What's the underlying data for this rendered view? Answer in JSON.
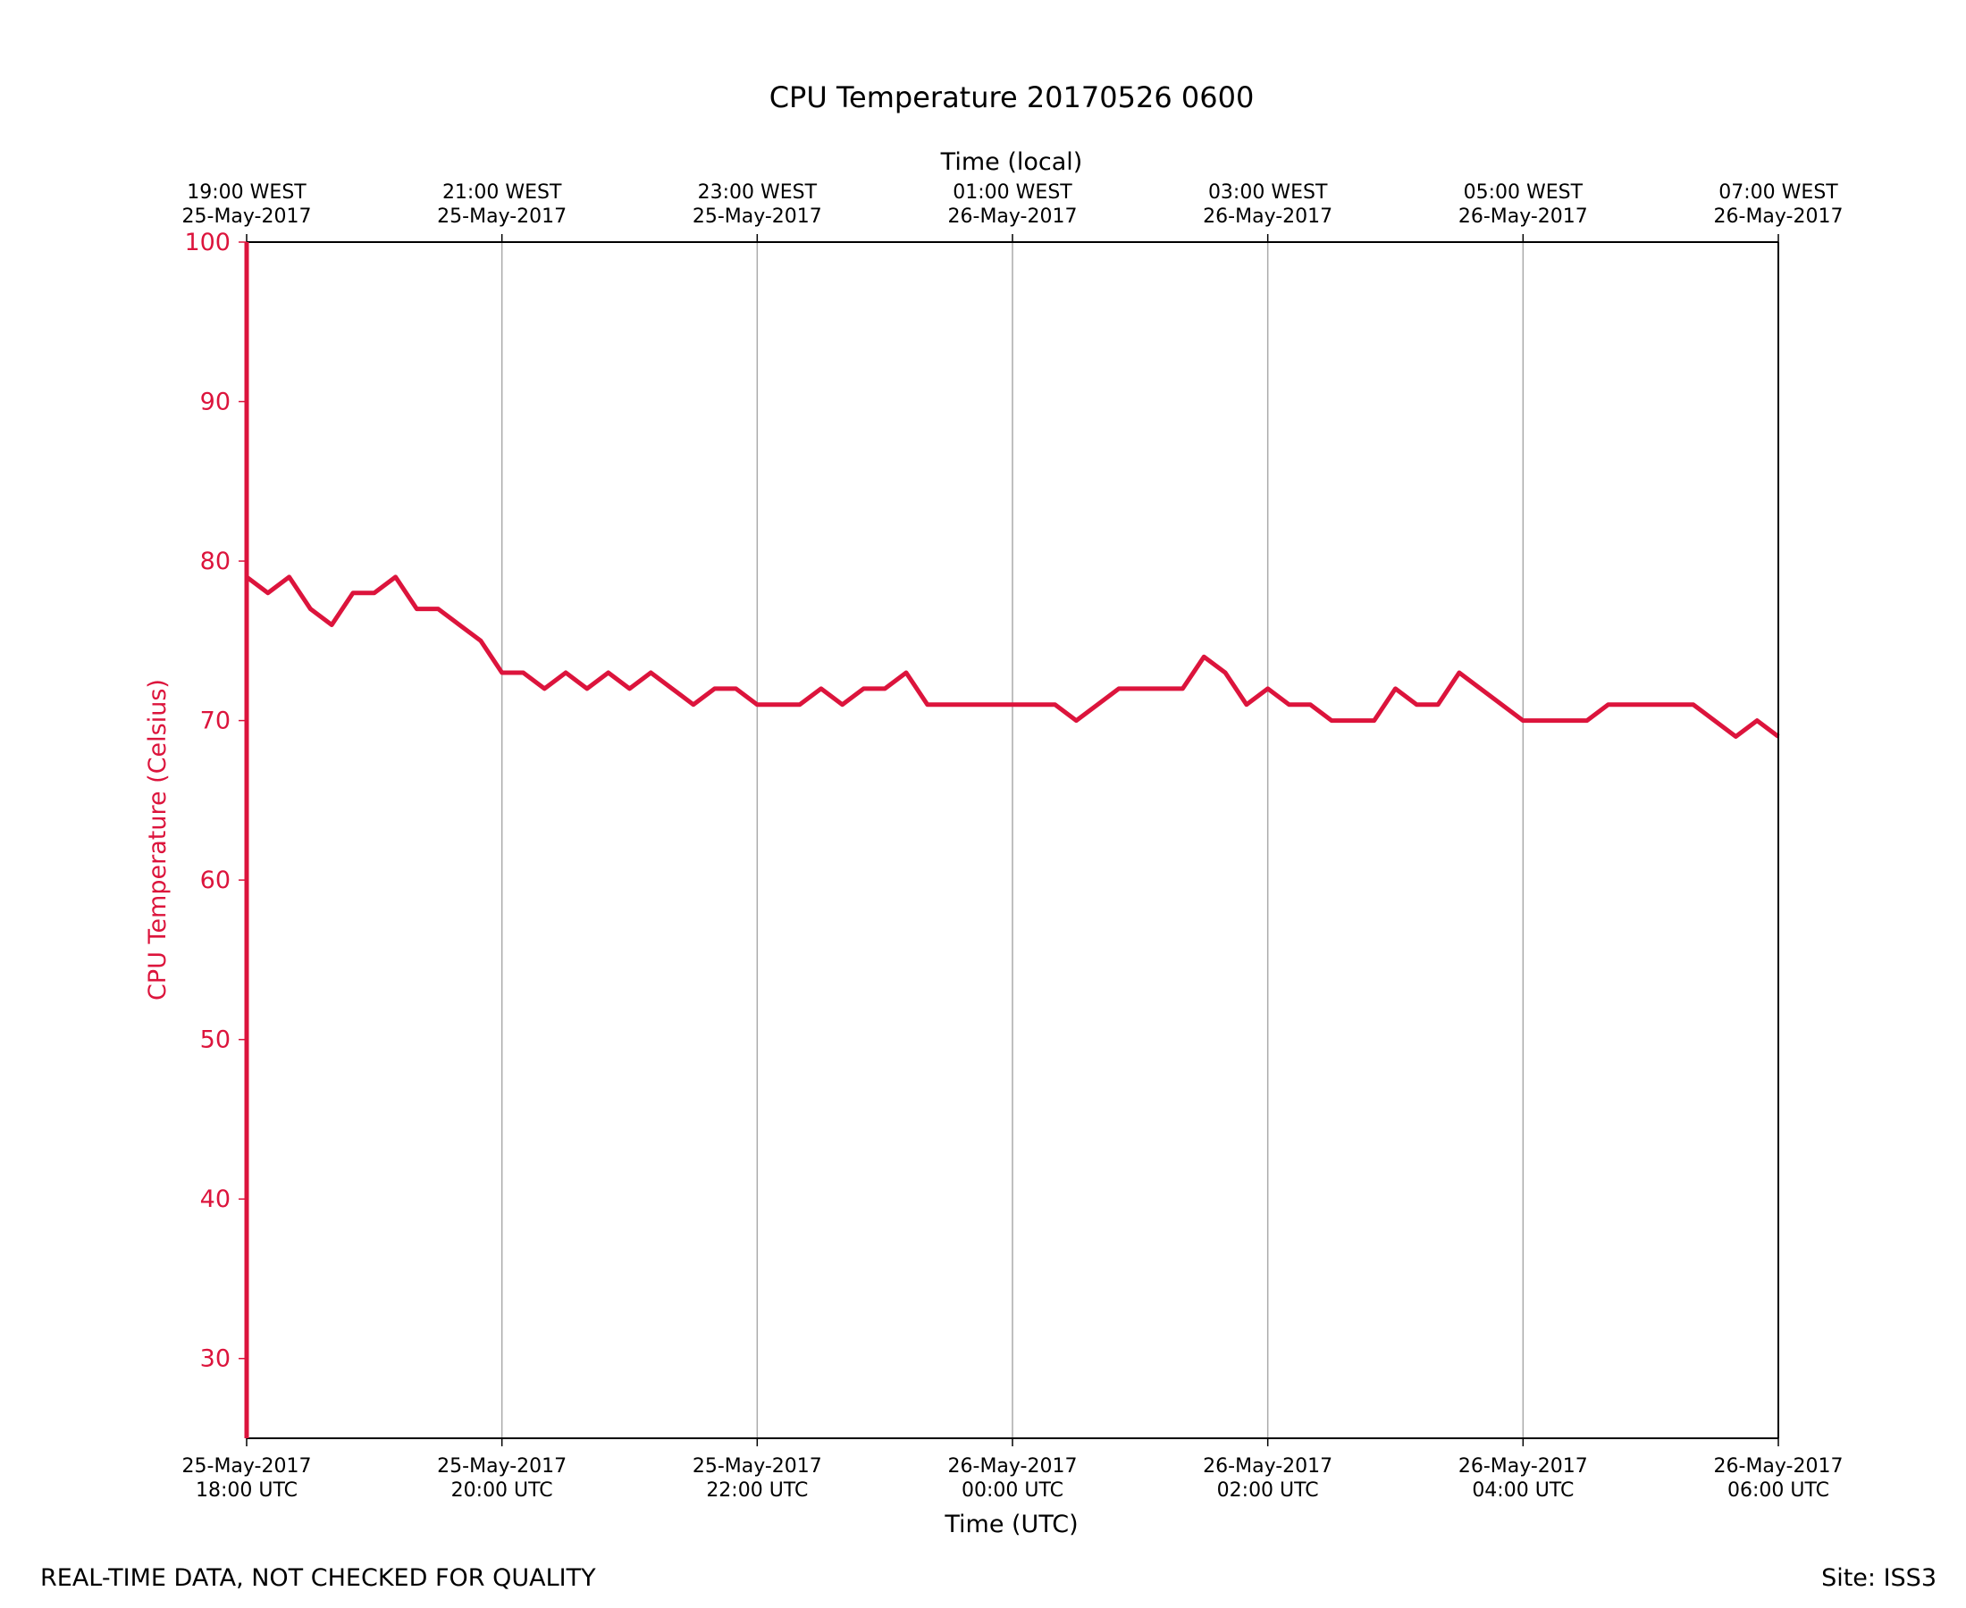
{
  "chart_data": {
    "type": "line",
    "title": "CPU Temperature 20170526 0600",
    "xlabel": "Time (UTC)",
    "x2label": "Time (local)",
    "ylabel": "CPU Temperature (Celsius)",
    "ylim": [
      25,
      100
    ],
    "yticks": [
      30,
      40,
      50,
      60,
      70,
      80,
      90,
      100
    ],
    "xlim": [
      "2017-05-25 18:00",
      "2017-05-26 06:00"
    ],
    "xticks_utc": [
      {
        "line1": "25-May-2017",
        "line2": "18:00 UTC"
      },
      {
        "line1": "25-May-2017",
        "line2": "20:00 UTC"
      },
      {
        "line1": "25-May-2017",
        "line2": "22:00 UTC"
      },
      {
        "line1": "26-May-2017",
        "line2": "00:00 UTC"
      },
      {
        "line1": "26-May-2017",
        "line2": "02:00 UTC"
      },
      {
        "line1": "26-May-2017",
        "line2": "04:00 UTC"
      },
      {
        "line1": "26-May-2017",
        "line2": "06:00 UTC"
      }
    ],
    "xticks_local": [
      {
        "line1": "19:00 WEST",
        "line2": "25-May-2017"
      },
      {
        "line1": "21:00 WEST",
        "line2": "25-May-2017"
      },
      {
        "line1": "23:00 WEST",
        "line2": "25-May-2017"
      },
      {
        "line1": "01:00 WEST",
        "line2": "26-May-2017"
      },
      {
        "line1": "03:00 WEST",
        "line2": "26-May-2017"
      },
      {
        "line1": "05:00 WEST",
        "line2": "26-May-2017"
      },
      {
        "line1": "07:00 WEST",
        "line2": "26-May-2017"
      }
    ],
    "grid": "vertical",
    "series": [
      {
        "color": "#dc143c",
        "x": [
          "2017-05-25 18:00",
          "2017-05-25 18:10",
          "2017-05-25 18:20",
          "2017-05-25 18:30",
          "2017-05-25 18:40",
          "2017-05-25 18:50",
          "2017-05-25 19:00",
          "2017-05-25 19:10",
          "2017-05-25 19:20",
          "2017-05-25 19:30",
          "2017-05-25 19:40",
          "2017-05-25 19:50",
          "2017-05-25 20:00",
          "2017-05-25 20:10",
          "2017-05-25 20:20",
          "2017-05-25 20:30",
          "2017-05-25 20:40",
          "2017-05-25 20:50",
          "2017-05-25 21:00",
          "2017-05-25 21:10",
          "2017-05-25 21:20",
          "2017-05-25 21:30",
          "2017-05-25 21:40",
          "2017-05-25 21:50",
          "2017-05-25 22:00",
          "2017-05-25 22:10",
          "2017-05-25 22:20",
          "2017-05-25 22:30",
          "2017-05-25 22:40",
          "2017-05-25 22:50",
          "2017-05-25 23:00",
          "2017-05-25 23:10",
          "2017-05-25 23:20",
          "2017-05-25 23:30",
          "2017-05-25 23:40",
          "2017-05-25 23:50",
          "2017-05-26 00:00",
          "2017-05-26 00:10",
          "2017-05-26 00:20",
          "2017-05-26 00:30",
          "2017-05-26 00:40",
          "2017-05-26 00:50",
          "2017-05-26 01:00",
          "2017-05-26 01:10",
          "2017-05-26 01:20",
          "2017-05-26 01:30",
          "2017-05-26 01:40",
          "2017-05-26 01:50",
          "2017-05-26 02:00",
          "2017-05-26 02:10",
          "2017-05-26 02:20",
          "2017-05-26 02:30",
          "2017-05-26 02:40",
          "2017-05-26 02:50",
          "2017-05-26 03:00",
          "2017-05-26 03:10",
          "2017-05-26 03:20",
          "2017-05-26 03:30",
          "2017-05-26 03:40",
          "2017-05-26 03:50",
          "2017-05-26 04:00",
          "2017-05-26 04:10",
          "2017-05-26 04:20",
          "2017-05-26 04:30",
          "2017-05-26 04:40",
          "2017-05-26 04:50",
          "2017-05-26 05:00",
          "2017-05-26 05:10",
          "2017-05-26 05:20",
          "2017-05-26 05:30",
          "2017-05-26 05:40",
          "2017-05-26 05:50",
          "2017-05-26 06:00"
        ],
        "y": [
          79,
          78,
          79,
          77,
          76,
          78,
          78,
          79,
          77,
          77,
          76,
          75,
          73,
          73,
          72,
          73,
          72,
          73,
          72,
          73,
          72,
          71,
          72,
          72,
          71,
          71,
          71,
          72,
          71,
          72,
          72,
          73,
          71,
          71,
          71,
          71,
          71,
          71,
          71,
          70,
          71,
          72,
          72,
          72,
          72,
          74,
          73,
          71,
          72,
          71,
          71,
          70,
          70,
          70,
          72,
          71,
          71,
          73,
          72,
          71,
          70,
          70,
          70,
          70,
          71,
          71,
          71,
          71,
          71,
          70,
          69,
          70,
          69
        ]
      }
    ]
  },
  "footer": {
    "quality_note": "REAL-TIME DATA, NOT CHECKED FOR QUALITY",
    "site": "Site: ISS3"
  }
}
